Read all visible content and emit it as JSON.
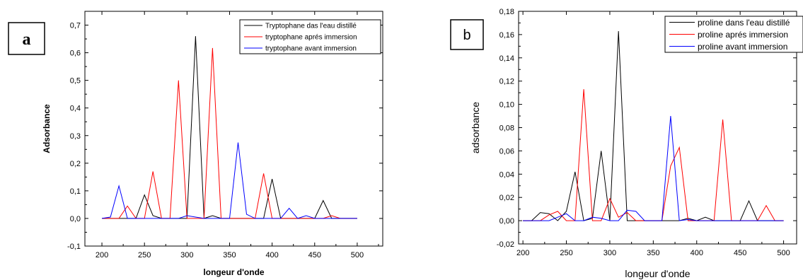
{
  "chart_data": [
    {
      "type": "line",
      "panel_label": "a",
      "xlabel": "longeur d'onde",
      "ylabel": "Adsorbance",
      "xlim": [
        180,
        530
      ],
      "ylim": [
        -0.1,
        0.75
      ],
      "xticks": [
        200,
        250,
        300,
        350,
        400,
        450,
        500
      ],
      "yticks": [
        -0.1,
        0.0,
        0.1,
        0.2,
        0.3,
        0.4,
        0.5,
        0.6,
        0.7
      ],
      "tick_labels_x": [
        "200",
        "250",
        "300",
        "350",
        "400",
        "450",
        "500"
      ],
      "tick_labels_y": [
        "-0,1",
        "0,0",
        "0,1",
        "0,2",
        "0,3",
        "0,4",
        "0,5",
        "0,6",
        "0,7"
      ],
      "legend_position": "top-right",
      "grid": false,
      "x": [
        200,
        210,
        220,
        230,
        240,
        250,
        260,
        270,
        280,
        290,
        300,
        310,
        320,
        330,
        340,
        350,
        360,
        370,
        380,
        390,
        400,
        410,
        420,
        430,
        440,
        450,
        460,
        470,
        480,
        490,
        500
      ],
      "series": [
        {
          "name": "Tryptophane das l'eau distillé",
          "color": "#000000",
          "values": [
            0,
            0,
            0,
            0,
            0,
            0.085,
            0.01,
            0,
            0,
            0,
            0,
            0.66,
            0,
            0.01,
            0,
            0,
            0,
            0,
            0,
            0,
            0.143,
            0,
            0,
            0,
            0,
            0,
            0.065,
            0,
            0,
            0,
            0
          ]
        },
        {
          "name": "tryptophane aprés immersion",
          "color": "#ff0000",
          "values": [
            0,
            0,
            0,
            0.045,
            0,
            0,
            0.17,
            0,
            0,
            0.5,
            0,
            0,
            0,
            0.617,
            0,
            0,
            0,
            0,
            0,
            0.163,
            0,
            0,
            0,
            0,
            0,
            0,
            0,
            0.01,
            0,
            0,
            0
          ]
        },
        {
          "name": "tryptophane avant immersion",
          "color": "#0000ff",
          "values": [
            0,
            0.005,
            0.118,
            0,
            0,
            0,
            0,
            0,
            0,
            0,
            0.01,
            0.005,
            0,
            0,
            0,
            0,
            0.275,
            0.015,
            0,
            0,
            0,
            0,
            0.037,
            0,
            0.01,
            0,
            0,
            0,
            0,
            0,
            0
          ]
        }
      ]
    },
    {
      "type": "line",
      "panel_label": "b",
      "xlabel": "longeur d'onde",
      "ylabel": "adsorbance",
      "xlim": [
        195,
        515
      ],
      "ylim": [
        -0.02,
        0.18
      ],
      "xticks": [
        200,
        250,
        300,
        350,
        400,
        450,
        500
      ],
      "yticks": [
        -0.02,
        0.0,
        0.02,
        0.04,
        0.06,
        0.08,
        0.1,
        0.12,
        0.14,
        0.16,
        0.18
      ],
      "tick_labels_x": [
        "200",
        "250",
        "300",
        "350",
        "400",
        "450",
        "500"
      ],
      "tick_labels_y": [
        "-0,02",
        "0,00",
        "0,02",
        "0,04",
        "0,06",
        "0,08",
        "0,10",
        "0,12",
        "0,14",
        "0,16",
        "0,18"
      ],
      "legend_position": "top-right",
      "grid": false,
      "x": [
        200,
        210,
        220,
        230,
        240,
        250,
        260,
        270,
        280,
        290,
        300,
        310,
        320,
        330,
        340,
        350,
        360,
        370,
        380,
        390,
        400,
        410,
        420,
        430,
        440,
        450,
        460,
        470,
        480,
        490,
        500
      ],
      "series": [
        {
          "name": "proline dans l'eau distillé",
          "color": "#000000",
          "values": [
            0,
            0,
            0.007,
            0.006,
            0,
            0.008,
            0.042,
            0,
            0.002,
            0.06,
            0,
            0.163,
            0,
            0,
            0,
            0,
            0,
            0,
            0,
            0.002,
            0,
            0.003,
            0,
            0,
            0,
            0,
            0.017,
            0,
            0,
            0,
            0
          ]
        },
        {
          "name": "proline aprés immersion",
          "color": "#ff0000",
          "values": [
            0,
            0,
            0,
            0.005,
            0.008,
            0,
            0,
            0.113,
            0,
            0,
            0.019,
            0.003,
            0.007,
            0,
            0,
            0,
            0,
            0.047,
            0.063,
            0,
            0,
            0,
            0,
            0.087,
            0,
            0,
            0,
            0,
            0.013,
            0,
            0
          ]
        },
        {
          "name": "proline avant  immersion",
          "color": "#0000ff",
          "values": [
            0,
            0,
            0,
            0,
            0.003,
            0.006,
            0,
            0,
            0.003,
            0.002,
            0,
            0,
            0.009,
            0.008,
            0,
            0,
            0,
            0.09,
            0,
            0.001,
            0,
            0,
            0,
            0,
            0,
            0,
            0,
            0,
            0,
            0,
            0
          ]
        }
      ]
    }
  ]
}
